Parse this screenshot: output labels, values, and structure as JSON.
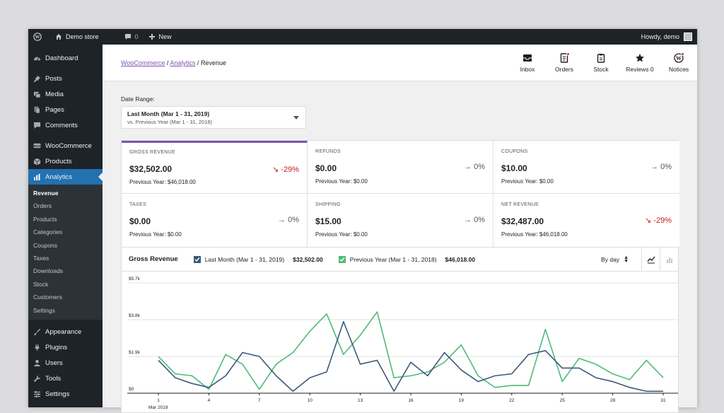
{
  "admin_bar": {
    "site_name": "Demo store",
    "comments_count": "0",
    "new_label": "New",
    "greeting": "Howdy, demo"
  },
  "sidebar": {
    "items": [
      {
        "label": "Dashboard",
        "icon": "gauge-icon"
      },
      {
        "label": "Posts",
        "icon": "pin-icon"
      },
      {
        "label": "Media",
        "icon": "media-icon"
      },
      {
        "label": "Pages",
        "icon": "pages-icon"
      },
      {
        "label": "Comments",
        "icon": "comment-icon"
      },
      {
        "label": "WooCommerce",
        "icon": "woo-icon"
      },
      {
        "label": "Products",
        "icon": "box-icon"
      },
      {
        "label": "Analytics",
        "icon": "bar-chart-icon"
      },
      {
        "label": "Appearance",
        "icon": "brush-icon"
      },
      {
        "label": "Plugins",
        "icon": "plug-icon"
      },
      {
        "label": "Users",
        "icon": "user-icon"
      },
      {
        "label": "Tools",
        "icon": "wrench-icon"
      },
      {
        "label": "Settings",
        "icon": "sliders-icon"
      }
    ],
    "analytics_submenu": [
      "Revenue",
      "Orders",
      "Products",
      "Categories",
      "Coupons",
      "Taxes",
      "Downloads",
      "Stock",
      "Customers",
      "Settings"
    ]
  },
  "breadcrumb": {
    "root": "WooCommerce",
    "parent": "Analytics",
    "current": "Revenue"
  },
  "activity_panel": [
    {
      "label": "Inbox",
      "icon": "inbox-icon"
    },
    {
      "label": "Orders",
      "icon": "orders-icon"
    },
    {
      "label": "Stock",
      "icon": "stock-icon"
    },
    {
      "label": "Reviews 0",
      "icon": "star-icon"
    },
    {
      "label": "Notices",
      "icon": "wordpress-icon"
    }
  ],
  "date_range": {
    "label": "Date Range:",
    "primary": "Last Month (Mar 1 - 31, 2019)",
    "secondary": "vs. Previous Year (Mar 1 - 31, 2018)"
  },
  "summary": [
    {
      "label": "GROSS REVENUE",
      "value": "$32,502.00",
      "delta": "↘ -29%",
      "previous": "Previous Year: $46,018.00",
      "negative": true
    },
    {
      "label": "REFUNDS",
      "value": "$0.00",
      "delta": "→ 0%",
      "previous": "Previous Year: $0.00",
      "negative": false
    },
    {
      "label": "COUPONS",
      "value": "$10.00",
      "delta": "→ 0%",
      "previous": "Previous Year: $0.00",
      "negative": false
    },
    {
      "label": "TAXES",
      "value": "$0.00",
      "delta": "→ 0%",
      "previous": "Previous Year: $0.00",
      "negative": false
    },
    {
      "label": "SHIPPING",
      "value": "$15.00",
      "delta": "→ 0%",
      "previous": "Previous Year: $0.00",
      "negative": false
    },
    {
      "label": "NET REVENUE",
      "value": "$32,487.00",
      "delta": "↘ -29%",
      "previous": "Previous Year: $46,018.00",
      "negative": true
    }
  ],
  "chart_header": {
    "title": "Gross Revenue",
    "legend": [
      {
        "label": "Last Month (Mar 1 - 31, 2019)",
        "amount": "$32,502.00",
        "color": "#3c5a7a"
      },
      {
        "label": "Previous Year (Mar 1 - 31, 2018)",
        "amount": "$46,018.00",
        "color": "#4fba79"
      }
    ],
    "interval": "By day"
  },
  "chart_data": {
    "type": "line",
    "x": [
      1,
      2,
      3,
      4,
      5,
      6,
      7,
      8,
      9,
      10,
      11,
      12,
      13,
      14,
      15,
      16,
      17,
      18,
      19,
      20,
      21,
      22,
      23,
      24,
      25,
      26,
      27,
      28,
      29,
      30,
      31
    ],
    "x_ticks": [
      "1",
      "4",
      "7",
      "10",
      "13",
      "16",
      "19",
      "22",
      "25",
      "28",
      "31"
    ],
    "x_sublabel": "Mar 2019",
    "y_ticks": [
      "$0",
      "$1.9k",
      "$3.8k",
      "$5.7k"
    ],
    "ylim": [
      0,
      5700
    ],
    "series": [
      {
        "name": "Last Month (Mar 1 - 31, 2019)",
        "color": "#3c5a7a",
        "values": [
          1700,
          800,
          500,
          300,
          900,
          2100,
          1900,
          900,
          100,
          800,
          1100,
          3700,
          1500,
          1700,
          100,
          1600,
          900,
          2100,
          1200,
          600,
          900,
          1000,
          2000,
          2200,
          1300,
          1300,
          800,
          600,
          300,
          100,
          100
        ]
      },
      {
        "name": "Previous Year (Mar 1 - 31, 2018)",
        "color": "#4fba79",
        "values": [
          1900,
          1000,
          900,
          200,
          2000,
          1500,
          200,
          1500,
          2100,
          3200,
          4100,
          2000,
          3000,
          4200,
          800,
          900,
          1100,
          1600,
          2500,
          900,
          300,
          400,
          400,
          3300,
          600,
          1800,
          1500,
          1000,
          700,
          1700,
          800
        ]
      }
    ]
  }
}
